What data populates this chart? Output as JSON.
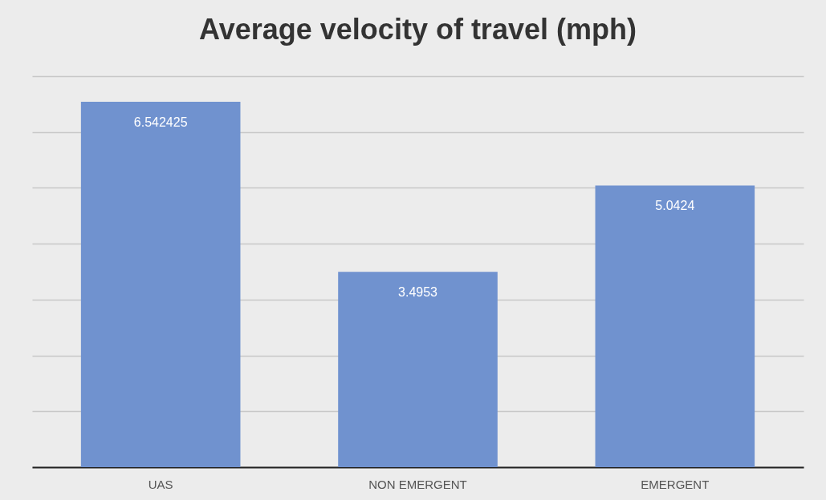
{
  "chart_data": {
    "type": "bar",
    "title": "Average velocity of travel (mph)",
    "categories": [
      "UAS",
      "NON EMERGENT",
      "EMERGENT"
    ],
    "values": [
      6.542425,
      3.4953,
      5.0424
    ],
    "color": "#7092cf",
    "ylim": [
      0,
      7
    ],
    "yticks": [
      {
        "value": 0,
        "label": null
      },
      {
        "value": 1,
        "label": null
      },
      {
        "value": 2,
        "label": null
      },
      {
        "value": 3,
        "label": null
      },
      {
        "value": 4,
        "label": null
      },
      {
        "value": 5,
        "label": null
      },
      {
        "value": 6,
        "label": null
      },
      {
        "value": 7,
        "label": null
      }
    ],
    "grid": "y",
    "tick_labels": "x",
    "data_labels": true
  }
}
